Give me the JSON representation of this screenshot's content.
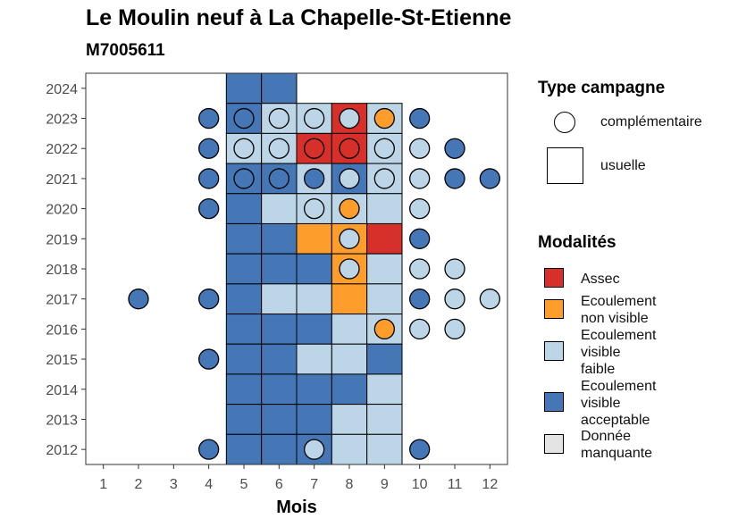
{
  "chart_data": {
    "type": "heatmap",
    "title": "Le Moulin neuf à La Chapelle-St-Etienne",
    "subtitle": "M7005611",
    "xlabel": "Mois",
    "ylabel": "",
    "x_ticks": [
      "1",
      "2",
      "3",
      "4",
      "5",
      "6",
      "7",
      "8",
      "9",
      "10",
      "11",
      "12"
    ],
    "y_ticks": [
      "2012",
      "2013",
      "2014",
      "2015",
      "2016",
      "2017",
      "2018",
      "2019",
      "2020",
      "2021",
      "2022",
      "2023",
      "2024"
    ],
    "xlim": [
      0.5,
      12.5
    ],
    "ylim": [
      2011.5,
      2024.5
    ],
    "grid": false,
    "legend_position": "right",
    "colors": {
      "Assec": "#d7302a",
      "Ecoulement non visible": "#fd9d2c",
      "Ecoulement visible faible": "#bcd6e7",
      "Ecoulement visible acceptable": "#4576b6",
      "Donnée manquante": "#e4e4e4"
    },
    "shape_legend": {
      "title": "Type campagne",
      "items": [
        {
          "shape": "circle",
          "label": "complémentaire"
        },
        {
          "shape": "square",
          "label": "usuelle"
        }
      ]
    },
    "color_legend": {
      "title": "Modalités",
      "items": [
        {
          "key": "Assec",
          "lines": [
            "Assec"
          ]
        },
        {
          "key": "Ecoulement non visible",
          "lines": [
            "Ecoulement",
            "non visible"
          ]
        },
        {
          "key": "Ecoulement visible faible",
          "lines": [
            "Ecoulement",
            "visible",
            "faible"
          ]
        },
        {
          "key": "Ecoulement visible acceptable",
          "lines": [
            "Ecoulement",
            "visible",
            "acceptable"
          ]
        },
        {
          "key": "Donnée manquante",
          "lines": [
            "Donnée",
            "manquante"
          ]
        }
      ]
    },
    "usuelle": [
      {
        "year": 2024,
        "month": 5,
        "value": "Ecoulement visible acceptable"
      },
      {
        "year": 2024,
        "month": 6,
        "value": "Ecoulement visible acceptable"
      },
      {
        "year": 2023,
        "month": 5,
        "value": "Ecoulement visible acceptable"
      },
      {
        "year": 2023,
        "month": 6,
        "value": "Ecoulement visible faible"
      },
      {
        "year": 2023,
        "month": 7,
        "value": "Ecoulement visible faible"
      },
      {
        "year": 2023,
        "month": 8,
        "value": "Assec"
      },
      {
        "year": 2023,
        "month": 9,
        "value": "Ecoulement visible faible"
      },
      {
        "year": 2022,
        "month": 5,
        "value": "Ecoulement visible faible"
      },
      {
        "year": 2022,
        "month": 6,
        "value": "Ecoulement visible faible"
      },
      {
        "year": 2022,
        "month": 7,
        "value": "Assec"
      },
      {
        "year": 2022,
        "month": 8,
        "value": "Assec"
      },
      {
        "year": 2022,
        "month": 9,
        "value": "Ecoulement visible faible"
      },
      {
        "year": 2021,
        "month": 5,
        "value": "Ecoulement visible acceptable"
      },
      {
        "year": 2021,
        "month": 6,
        "value": "Ecoulement visible acceptable"
      },
      {
        "year": 2021,
        "month": 7,
        "value": "Ecoulement visible faible"
      },
      {
        "year": 2021,
        "month": 8,
        "value": "Ecoulement visible acceptable"
      },
      {
        "year": 2021,
        "month": 9,
        "value": "Ecoulement visible faible"
      },
      {
        "year": 2020,
        "month": 5,
        "value": "Ecoulement visible acceptable"
      },
      {
        "year": 2020,
        "month": 6,
        "value": "Ecoulement visible faible"
      },
      {
        "year": 2020,
        "month": 7,
        "value": "Ecoulement visible faible"
      },
      {
        "year": 2020,
        "month": 8,
        "value": "Ecoulement visible faible"
      },
      {
        "year": 2020,
        "month": 9,
        "value": "Ecoulement visible faible"
      },
      {
        "year": 2019,
        "month": 5,
        "value": "Ecoulement visible acceptable"
      },
      {
        "year": 2019,
        "month": 6,
        "value": "Ecoulement visible acceptable"
      },
      {
        "year": 2019,
        "month": 7,
        "value": "Ecoulement non visible"
      },
      {
        "year": 2019,
        "month": 8,
        "value": "Ecoulement non visible"
      },
      {
        "year": 2019,
        "month": 9,
        "value": "Assec"
      },
      {
        "year": 2018,
        "month": 5,
        "value": "Ecoulement visible acceptable"
      },
      {
        "year": 2018,
        "month": 6,
        "value": "Ecoulement visible acceptable"
      },
      {
        "year": 2018,
        "month": 7,
        "value": "Ecoulement visible acceptable"
      },
      {
        "year": 2018,
        "month": 8,
        "value": "Ecoulement non visible"
      },
      {
        "year": 2018,
        "month": 9,
        "value": "Ecoulement visible faible"
      },
      {
        "year": 2017,
        "month": 5,
        "value": "Ecoulement visible acceptable"
      },
      {
        "year": 2017,
        "month": 6,
        "value": "Ecoulement visible faible"
      },
      {
        "year": 2017,
        "month": 7,
        "value": "Ecoulement visible faible"
      },
      {
        "year": 2017,
        "month": 8,
        "value": "Ecoulement non visible"
      },
      {
        "year": 2017,
        "month": 9,
        "value": "Ecoulement visible faible"
      },
      {
        "year": 2016,
        "month": 5,
        "value": "Ecoulement visible acceptable"
      },
      {
        "year": 2016,
        "month": 6,
        "value": "Ecoulement visible acceptable"
      },
      {
        "year": 2016,
        "month": 7,
        "value": "Ecoulement visible acceptable"
      },
      {
        "year": 2016,
        "month": 8,
        "value": "Ecoulement visible faible"
      },
      {
        "year": 2016,
        "month": 9,
        "value": "Ecoulement visible faible"
      },
      {
        "year": 2015,
        "month": 5,
        "value": "Ecoulement visible acceptable"
      },
      {
        "year": 2015,
        "month": 6,
        "value": "Ecoulement visible acceptable"
      },
      {
        "year": 2015,
        "month": 7,
        "value": "Ecoulement visible faible"
      },
      {
        "year": 2015,
        "month": 8,
        "value": "Ecoulement visible faible"
      },
      {
        "year": 2015,
        "month": 9,
        "value": "Ecoulement visible acceptable"
      },
      {
        "year": 2014,
        "month": 5,
        "value": "Ecoulement visible acceptable"
      },
      {
        "year": 2014,
        "month": 6,
        "value": "Ecoulement visible acceptable"
      },
      {
        "year": 2014,
        "month": 7,
        "value": "Ecoulement visible acceptable"
      },
      {
        "year": 2014,
        "month": 8,
        "value": "Ecoulement visible acceptable"
      },
      {
        "year": 2014,
        "month": 9,
        "value": "Ecoulement visible faible"
      },
      {
        "year": 2013,
        "month": 5,
        "value": "Ecoulement visible acceptable"
      },
      {
        "year": 2013,
        "month": 6,
        "value": "Ecoulement visible acceptable"
      },
      {
        "year": 2013,
        "month": 7,
        "value": "Ecoulement visible acceptable"
      },
      {
        "year": 2013,
        "month": 8,
        "value": "Ecoulement visible faible"
      },
      {
        "year": 2013,
        "month": 9,
        "value": "Ecoulement visible faible"
      },
      {
        "year": 2012,
        "month": 5,
        "value": "Ecoulement visible acceptable"
      },
      {
        "year": 2012,
        "month": 6,
        "value": "Ecoulement visible acceptable"
      },
      {
        "year": 2012,
        "month": 7,
        "value": "Ecoulement visible acceptable"
      },
      {
        "year": 2012,
        "month": 8,
        "value": "Ecoulement visible faible"
      },
      {
        "year": 2012,
        "month": 9,
        "value": "Ecoulement visible faible"
      }
    ],
    "complementaire": [
      {
        "year": 2023,
        "month": 4,
        "value": "Ecoulement visible acceptable"
      },
      {
        "year": 2023,
        "month": 5,
        "value": "Ecoulement visible acceptable"
      },
      {
        "year": 2023,
        "month": 6,
        "value": "Ecoulement visible faible"
      },
      {
        "year": 2023,
        "month": 7,
        "value": "Ecoulement visible faible"
      },
      {
        "year": 2023,
        "month": 8,
        "value": "Ecoulement visible faible"
      },
      {
        "year": 2023,
        "month": 9,
        "value": "Ecoulement non visible"
      },
      {
        "year": 2023,
        "month": 10,
        "value": "Ecoulement visible acceptable"
      },
      {
        "year": 2022,
        "month": 4,
        "value": "Ecoulement visible acceptable"
      },
      {
        "year": 2022,
        "month": 5,
        "value": "Ecoulement visible faible"
      },
      {
        "year": 2022,
        "month": 6,
        "value": "Ecoulement visible faible"
      },
      {
        "year": 2022,
        "month": 7,
        "value": "Assec"
      },
      {
        "year": 2022,
        "month": 8,
        "value": "Assec"
      },
      {
        "year": 2022,
        "month": 9,
        "value": "Ecoulement visible faible"
      },
      {
        "year": 2022,
        "month": 10,
        "value": "Ecoulement visible faible"
      },
      {
        "year": 2022,
        "month": 11,
        "value": "Ecoulement visible acceptable"
      },
      {
        "year": 2021,
        "month": 4,
        "value": "Ecoulement visible acceptable"
      },
      {
        "year": 2021,
        "month": 5,
        "value": "Ecoulement visible acceptable"
      },
      {
        "year": 2021,
        "month": 6,
        "value": "Ecoulement visible acceptable"
      },
      {
        "year": 2021,
        "month": 7,
        "value": "Ecoulement visible acceptable"
      },
      {
        "year": 2021,
        "month": 8,
        "value": "Ecoulement visible faible"
      },
      {
        "year": 2021,
        "month": 9,
        "value": "Ecoulement visible faible"
      },
      {
        "year": 2021,
        "month": 10,
        "value": "Ecoulement visible faible"
      },
      {
        "year": 2021,
        "month": 11,
        "value": "Ecoulement visible acceptable"
      },
      {
        "year": 2021,
        "month": 12,
        "value": "Ecoulement visible acceptable"
      },
      {
        "year": 2020,
        "month": 4,
        "value": "Ecoulement visible acceptable"
      },
      {
        "year": 2020,
        "month": 7,
        "value": "Ecoulement visible faible"
      },
      {
        "year": 2020,
        "month": 8,
        "value": "Ecoulement non visible"
      },
      {
        "year": 2020,
        "month": 10,
        "value": "Ecoulement visible faible"
      },
      {
        "year": 2019,
        "month": 8,
        "value": "Ecoulement visible faible"
      },
      {
        "year": 2019,
        "month": 10,
        "value": "Ecoulement visible acceptable"
      },
      {
        "year": 2018,
        "month": 8,
        "value": "Ecoulement visible faible"
      },
      {
        "year": 2018,
        "month": 10,
        "value": "Ecoulement visible faible"
      },
      {
        "year": 2018,
        "month": 11,
        "value": "Ecoulement visible faible"
      },
      {
        "year": 2017,
        "month": 2,
        "value": "Ecoulement visible acceptable"
      },
      {
        "year": 2017,
        "month": 4,
        "value": "Ecoulement visible acceptable"
      },
      {
        "year": 2017,
        "month": 10,
        "value": "Ecoulement visible acceptable"
      },
      {
        "year": 2017,
        "month": 11,
        "value": "Ecoulement visible faible"
      },
      {
        "year": 2017,
        "month": 12,
        "value": "Ecoulement visible faible"
      },
      {
        "year": 2016,
        "month": 9,
        "value": "Ecoulement non visible"
      },
      {
        "year": 2016,
        "month": 10,
        "value": "Ecoulement visible faible"
      },
      {
        "year": 2016,
        "month": 11,
        "value": "Ecoulement visible faible"
      },
      {
        "year": 2015,
        "month": 4,
        "value": "Ecoulement visible acceptable"
      },
      {
        "year": 2012,
        "month": 4,
        "value": "Ecoulement visible acceptable"
      },
      {
        "year": 2012,
        "month": 7,
        "value": "Ecoulement visible faible"
      },
      {
        "year": 2012,
        "month": 10,
        "value": "Ecoulement visible acceptable"
      }
    ]
  }
}
